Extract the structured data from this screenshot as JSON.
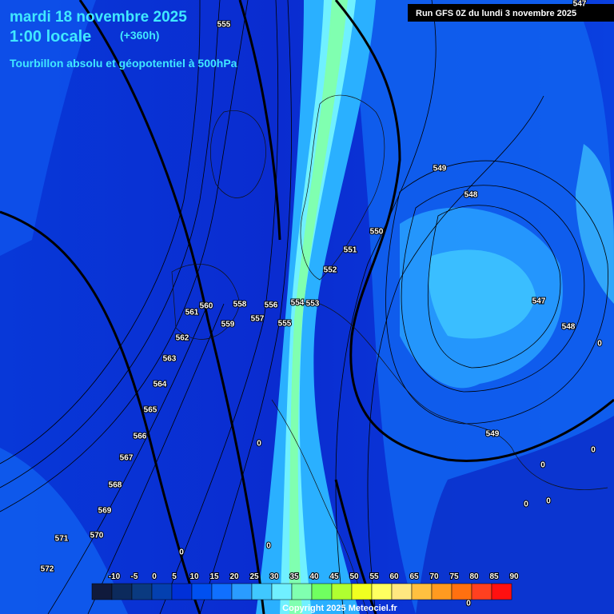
{
  "header": {
    "date": "mardi 18 novembre 2025",
    "time": "1:00 locale",
    "lead": "(+360h)",
    "title": "Tourbillon absolu et géopotentiel à 500hPa"
  },
  "run": "Run GFS 0Z du lundi 3 novembre 2025",
  "contour_labels": [
    555,
    547,
    549,
    548,
    550,
    551,
    552,
    554,
    553,
    560,
    558,
    556,
    561,
    559,
    557,
    555,
    547,
    548,
    562,
    563,
    564,
    565,
    566,
    567,
    568,
    569,
    570,
    571,
    572,
    549,
    0,
    0,
    0,
    0,
    0,
    0,
    0,
    0,
    0
  ],
  "legend": {
    "labels": [
      -10,
      -5,
      0,
      5,
      10,
      15,
      20,
      25,
      30,
      35,
      40,
      45,
      50,
      55,
      60,
      65,
      70,
      75,
      80,
      85,
      90
    ],
    "colors": [
      "#101a3c",
      "#0c2a5c",
      "#0a3a80",
      "#0440b0",
      "#0030d8",
      "#0050f0",
      "#1070ff",
      "#2a9cff",
      "#40c8ff",
      "#70f0ff",
      "#80ffb0",
      "#70ff60",
      "#b0ff30",
      "#f0ff20",
      "#ffff60",
      "#ffe880",
      "#ffc040",
      "#ff9a20",
      "#ff7010",
      "#ff4020",
      "#ff1010"
    ]
  },
  "copyright": "Copyright 2025 Meteociel.fr"
}
